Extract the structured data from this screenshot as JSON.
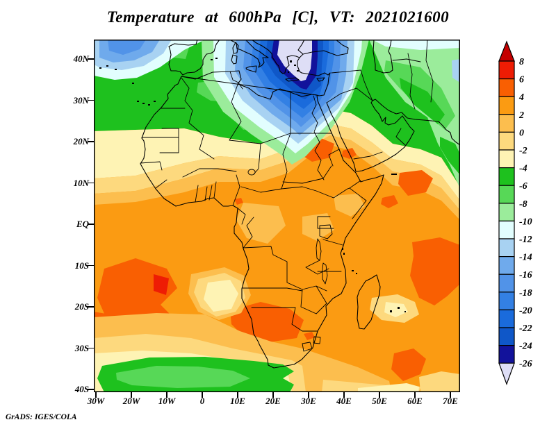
{
  "title": "Temperature at 600hPa [C], VT: 2021021600",
  "credit": "GrADS: IGES/COLA",
  "axes": {
    "y_labels": [
      "40N",
      "30N",
      "20N",
      "10N",
      "EQ",
      "10S",
      "20S",
      "30S",
      "40S"
    ],
    "x_labels": [
      "30W",
      "20W",
      "10W",
      "0",
      "10E",
      "20E",
      "30E",
      "40E",
      "50E",
      "60E",
      "70E"
    ]
  },
  "colorbar": {
    "tick_labels": [
      "8",
      "6",
      "4",
      "2",
      "0",
      "-2",
      "-4",
      "-6",
      "-8",
      "-10",
      "-12",
      "-14",
      "-16",
      "-18",
      "-20",
      "-22",
      "-24",
      "-26"
    ],
    "cell_colors": [
      "#EE1C04",
      "#F95F02",
      "#FB9B12",
      "#FCBE4E",
      "#FDD97E",
      "#FEF3B4",
      "#1EC11E",
      "#57D857",
      "#9BEC9B",
      "#E2FEFE",
      "#A8D2F2",
      "#6FAAEC",
      "#5193E8",
      "#3380E4",
      "#1A6BDC",
      "#0F57C8",
      "#12129B"
    ],
    "arrow_top_color": "#C40000",
    "arrow_bottom_color": "#DEDEF6",
    "units": "C"
  }
}
